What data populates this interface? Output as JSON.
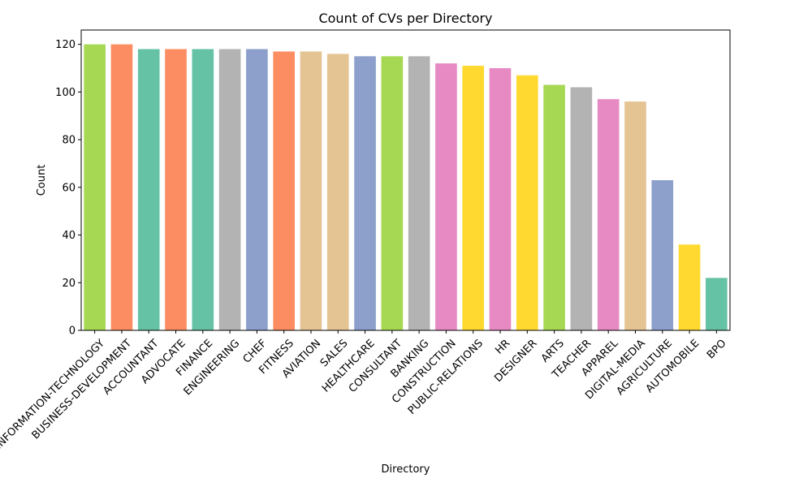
{
  "chart_data": {
    "type": "bar",
    "title": "Count of CVs per Directory",
    "xlabel": "Directory",
    "ylabel": "Count",
    "ylim": [
      0,
      126
    ],
    "yticks": [
      0,
      20,
      40,
      60,
      80,
      100,
      120
    ],
    "grid": false,
    "legend": "none",
    "categories": [
      "INFORMATION-TECHNOLOGY",
      "BUSINESS-DEVELOPMENT",
      "ACCOUNTANT",
      "ADVOCATE",
      "FINANCE",
      "ENGINEERING",
      "CHEF",
      "FITNESS",
      "AVIATION",
      "SALES",
      "HEALTHCARE",
      "CONSULTANT",
      "BANKING",
      "CONSTRUCTION",
      "PUBLIC-RELATIONS",
      "HR",
      "DESIGNER",
      "ARTS",
      "TEACHER",
      "APPAREL",
      "DIGITAL-MEDIA",
      "AGRICULTURE",
      "AUTOMOBILE",
      "BPO"
    ],
    "values": [
      120,
      120,
      118,
      118,
      118,
      118,
      118,
      117,
      117,
      116,
      115,
      115,
      115,
      112,
      111,
      110,
      107,
      103,
      102,
      97,
      96,
      63,
      36,
      22
    ],
    "colors": [
      "#a6d854",
      "#fc8d62",
      "#66c2a5",
      "#fc8d62",
      "#66c2a5",
      "#b3b3b3",
      "#8da0cb",
      "#fc8d62",
      "#e5c494",
      "#e5c494",
      "#8da0cb",
      "#a6d854",
      "#b3b3b3",
      "#e78ac3",
      "#ffd92f",
      "#e78ac3",
      "#ffd92f",
      "#a6d854",
      "#b3b3b3",
      "#e78ac3",
      "#e5c494",
      "#8da0cb",
      "#ffd92f",
      "#66c2a5"
    ]
  }
}
